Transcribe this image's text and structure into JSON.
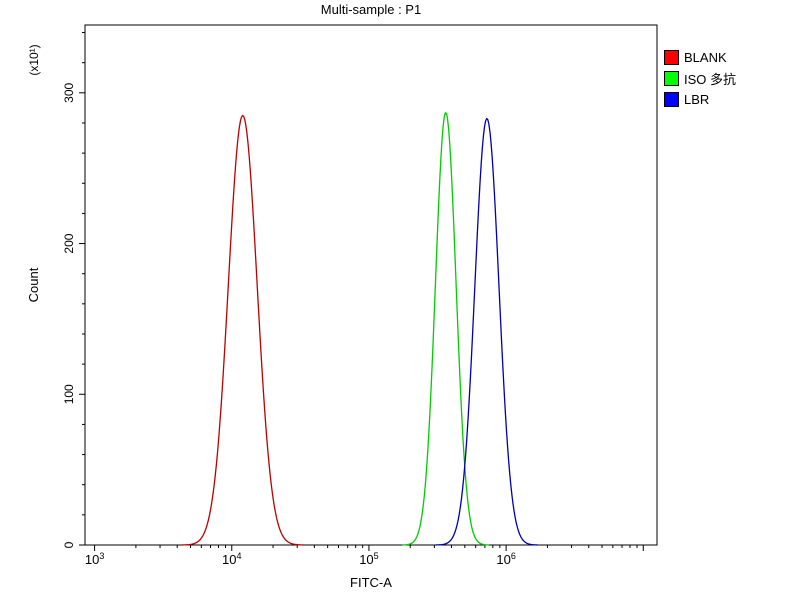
{
  "title": "Multi-sample : P1",
  "legend": [
    {
      "label": "BLANK",
      "color": "#ff0000"
    },
    {
      "label": "ISO 多抗",
      "color": "#00ff00"
    },
    {
      "label": "LBR",
      "color": "#0000ff"
    }
  ],
  "chart_data": {
    "type": "line",
    "subtype": "flow-cytometry-histogram",
    "title": "Multi-sample : P1",
    "xlabel": "FITC-A",
    "ylabel": "Count",
    "y_unit_label": "(x10¹)",
    "x_scale": "log",
    "x_range_log": [
      2.93,
      7.1
    ],
    "x_ticks_exponents": [
      3,
      4,
      5,
      6
    ],
    "ylim": [
      0,
      345
    ],
    "y_ticks": [
      0,
      100,
      200,
      300
    ],
    "y_minor_step": 20,
    "grid": false,
    "legend_position": "right",
    "series": [
      {
        "name": "BLANK",
        "color": "#bb0000",
        "peak_x": 12000,
        "peak_log10_x": 4.08,
        "peak_count": 285,
        "sigma_log10": 0.105
      },
      {
        "name": "ISO 多抗",
        "color": "#00cc00",
        "peak_x": 360000,
        "peak_log10_x": 5.56,
        "peak_count": 287,
        "sigma_log10": 0.075
      },
      {
        "name": "LBR",
        "color": "#0000b0",
        "peak_x": 720000,
        "peak_log10_x": 5.86,
        "peak_count": 283,
        "sigma_log10": 0.088
      }
    ]
  }
}
